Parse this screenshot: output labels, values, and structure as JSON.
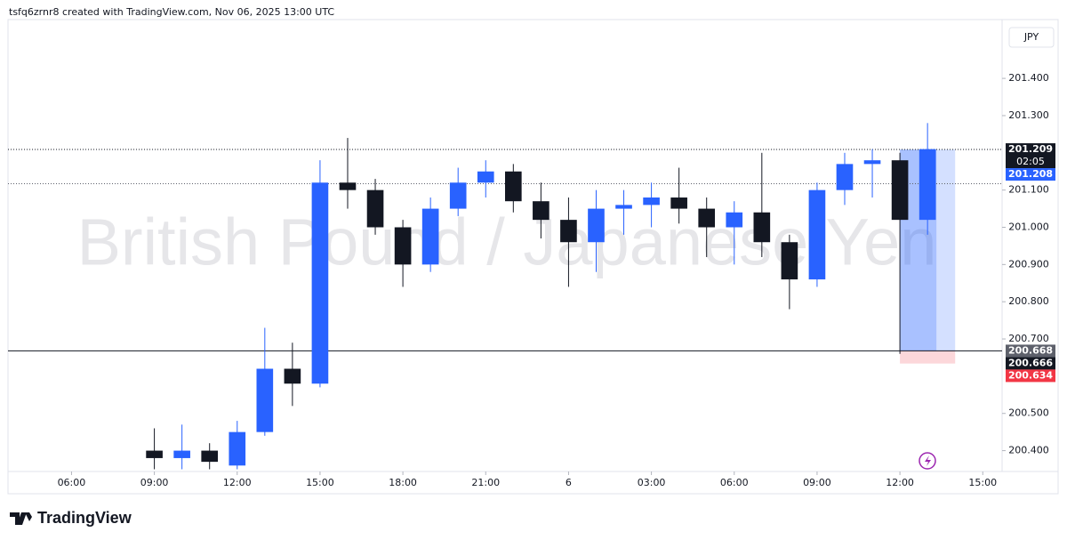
{
  "header": {
    "text": "tsfq6zrnr8 created with TradingView.com, Nov 06, 2025 13:00 UTC"
  },
  "footer": {
    "brand": "TradingView"
  },
  "chart_data": {
    "type": "candlestick",
    "watermark": "British Pound / Japanese Yen",
    "currency": "JPY",
    "up_color": "#2962ff",
    "down_color": "#131722",
    "x": [
      9,
      10,
      11,
      12,
      13,
      14,
      15,
      16,
      17,
      18,
      19,
      20,
      21,
      22,
      23,
      24,
      25,
      26,
      27,
      28,
      29,
      30,
      31,
      32,
      33,
      34,
      35,
      36,
      37
    ],
    "open": [
      200.4,
      200.38,
      200.4,
      200.36,
      200.45,
      200.62,
      200.58,
      201.12,
      201.1,
      201.0,
      200.9,
      201.05,
      201.12,
      201.15,
      201.07,
      201.02,
      200.96,
      201.05,
      201.06,
      201.08,
      201.05,
      201.0,
      201.04,
      200.96,
      200.86,
      201.1,
      201.17,
      201.18,
      201.02
    ],
    "high": [
      200.46,
      200.47,
      200.42,
      200.48,
      200.73,
      200.69,
      201.18,
      201.24,
      201.13,
      201.02,
      201.08,
      201.16,
      201.18,
      201.17,
      201.12,
      201.08,
      201.1,
      201.1,
      201.12,
      201.16,
      201.08,
      201.07,
      201.2,
      200.98,
      201.12,
      201.2,
      201.21,
      201.2,
      201.28
    ],
    "low": [
      200.35,
      200.35,
      200.35,
      200.35,
      200.44,
      200.52,
      200.57,
      201.05,
      200.98,
      200.84,
      200.88,
      201.03,
      201.08,
      201.04,
      200.97,
      200.84,
      200.88,
      200.98,
      201.0,
      201.01,
      200.92,
      200.9,
      200.92,
      200.78,
      200.84,
      201.06,
      201.08,
      200.66,
      200.98
    ],
    "close": [
      200.38,
      200.4,
      200.37,
      200.45,
      200.62,
      200.58,
      201.12,
      201.1,
      201.0,
      200.9,
      201.05,
      201.12,
      201.15,
      201.07,
      201.02,
      200.96,
      201.05,
      201.06,
      201.08,
      201.05,
      201.0,
      201.04,
      200.96,
      200.86,
      201.1,
      201.17,
      201.18,
      201.02,
      201.21
    ],
    "xlim": [
      3.7,
      39.7
    ],
    "xticks": [
      {
        "value": 6,
        "label": "06:00"
      },
      {
        "value": 9,
        "label": "09:00"
      },
      {
        "value": 12,
        "label": "12:00"
      },
      {
        "value": 15,
        "label": "15:00"
      },
      {
        "value": 18,
        "label": "18:00"
      },
      {
        "value": 21,
        "label": "21:00"
      },
      {
        "value": 24,
        "label": "6"
      },
      {
        "value": 27,
        "label": "03:00"
      },
      {
        "value": 30,
        "label": "06:00"
      },
      {
        "value": 33,
        "label": "09:00"
      },
      {
        "value": 36,
        "label": "12:00"
      },
      {
        "value": 39,
        "label": "15:00"
      }
    ],
    "ylim": [
      200.344,
      201.558
    ],
    "yticks": [
      {
        "value": 200.4,
        "label": "200.400"
      },
      {
        "value": 200.5,
        "label": "200.500"
      },
      {
        "value": 200.7,
        "label": "200.700"
      },
      {
        "value": 200.8,
        "label": "200.800"
      },
      {
        "value": 200.9,
        "label": "200.900"
      },
      {
        "value": 201,
        "label": "201.000"
      },
      {
        "value": 201.1,
        "label": "201.100"
      },
      {
        "value": 201.3,
        "label": "201.300"
      },
      {
        "value": 201.4,
        "label": "201.400"
      }
    ],
    "price_tags": [
      {
        "value": 201.209,
        "bg": "#131722",
        "countdown": "02:05"
      },
      {
        "value": 201.208,
        "bg": "#2962ff"
      },
      {
        "value": 200.668,
        "bg": "#5d606b"
      },
      {
        "value": 200.666,
        "bg": "#131722"
      },
      {
        "value": 200.634,
        "bg": "#f23645"
      }
    ],
    "price_lines": [
      {
        "value": 201.209,
        "style": "dotted",
        "color": "#131722"
      },
      {
        "value": 201.117,
        "style": "dotted",
        "color": "#5d606b"
      },
      {
        "value": 200.668,
        "style": "solid",
        "color": "#131722"
      }
    ],
    "position": {
      "entry": 200.668,
      "target": 201.209,
      "stop": 200.634,
      "x_start": 36,
      "x_end": 38
    }
  }
}
